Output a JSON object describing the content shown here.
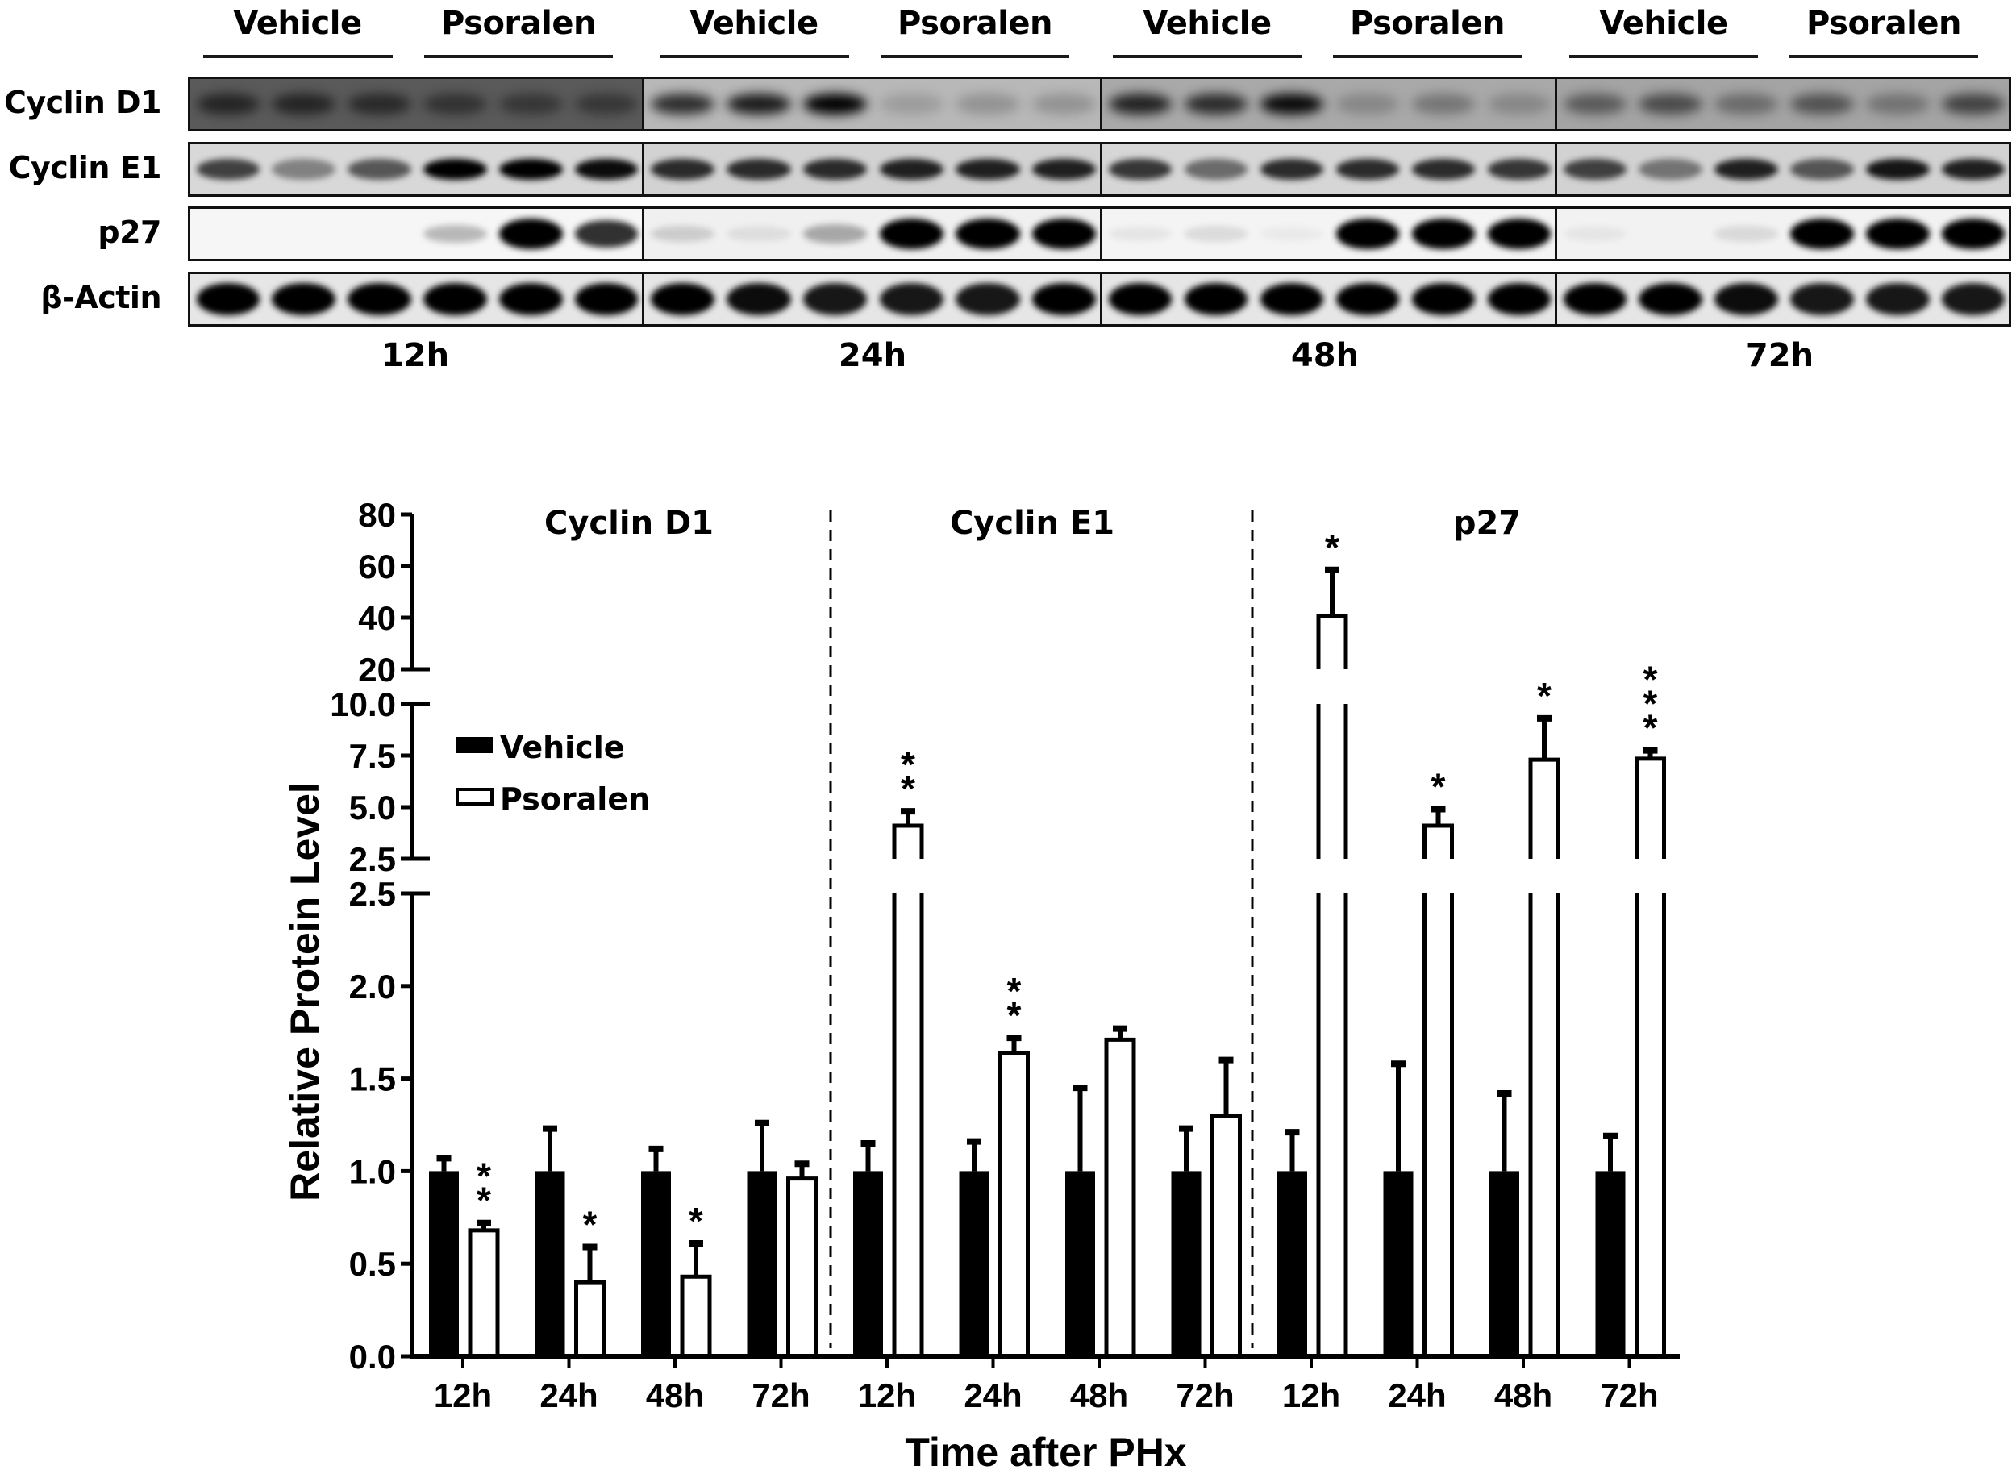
{
  "blot": {
    "group_labels": [
      {
        "label": "Vehicle",
        "x": 369,
        "line": [
          252,
          487
        ]
      },
      {
        "label": "Psoralen",
        "x": 643,
        "line": [
          526,
          760
        ]
      },
      {
        "label": "Vehicle",
        "x": 935,
        "line": [
          818,
          1053
        ]
      },
      {
        "label": "Psoralen",
        "x": 1209,
        "line": [
          1092,
          1326
        ]
      },
      {
        "label": "Vehicle",
        "x": 1497,
        "line": [
          1380,
          1614
        ]
      },
      {
        "label": "Psoralen",
        "x": 1770,
        "line": [
          1653,
          1888
        ]
      },
      {
        "label": "Vehicle",
        "x": 2063,
        "line": [
          1946,
          2180
        ]
      },
      {
        "label": "Psoralen",
        "x": 2336,
        "line": [
          2219,
          2453
        ]
      }
    ],
    "rows": [
      {
        "label": "Cyclin D1",
        "top": 95
      },
      {
        "label": "Cyclin E1",
        "top": 176
      },
      {
        "label": "p27",
        "top": 256
      },
      {
        "label": "β-Actin",
        "top": 337
      }
    ],
    "time_points": [
      {
        "label": "12h",
        "x": 515
      },
      {
        "label": "24h",
        "x": 1082
      },
      {
        "label": "48h",
        "x": 1643
      },
      {
        "label": "72h",
        "x": 2207
      }
    ]
  },
  "chart_data": {
    "type": "bar",
    "title": "",
    "xlabel": "Time after PHx",
    "ylabel": "Relative Protein Level",
    "legend": [
      {
        "name": "Vehicle",
        "fill": "#000000"
      },
      {
        "name": "Psoralen",
        "fill": "#ffffff"
      }
    ],
    "legend_position": "upper-left",
    "grid": false,
    "y_axis_segments": [
      {
        "range": [
          0,
          2.5
        ],
        "ticks": [
          "0.0",
          "0.5",
          "1.0",
          "1.5",
          "2.0",
          "2.5"
        ]
      },
      {
        "range": [
          2.5,
          10
        ],
        "ticks": [
          "2.5",
          "5.0",
          "7.5",
          "10.0"
        ]
      },
      {
        "range": [
          20,
          80
        ],
        "ticks": [
          "20",
          "40",
          "60",
          "80"
        ]
      }
    ],
    "panels": [
      {
        "title": "Cyclin D1",
        "categories": [
          "12h",
          "24h",
          "48h",
          "72h"
        ],
        "series": [
          {
            "name": "Vehicle",
            "values": [
              1.0,
              1.0,
              1.0,
              1.0
            ],
            "error_top": [
              1.07,
              1.23,
              1.12,
              1.26
            ]
          },
          {
            "name": "Psoralen",
            "values": [
              0.68,
              0.4,
              0.43,
              0.96
            ],
            "error_top": [
              0.72,
              0.59,
              0.61,
              1.04
            ]
          }
        ],
        "significance": [
          "**",
          "*",
          "*",
          ""
        ]
      },
      {
        "title": "Cyclin E1",
        "categories": [
          "12h",
          "24h",
          "48h",
          "72h"
        ],
        "series": [
          {
            "name": "Vehicle",
            "values": [
              1.0,
              1.0,
              1.0,
              1.0
            ],
            "error_top": [
              1.15,
              1.16,
              1.45,
              1.23
            ]
          },
          {
            "name": "Psoralen",
            "values": [
              4.1,
              1.64,
              1.71,
              1.3
            ],
            "error_top": [
              4.8,
              1.72,
              1.77,
              1.6
            ]
          }
        ],
        "significance": [
          "**",
          "**",
          "",
          ""
        ]
      },
      {
        "title": "p27",
        "categories": [
          "12h",
          "24h",
          "48h",
          "72h"
        ],
        "series": [
          {
            "name": "Vehicle",
            "values": [
              1.0,
              1.0,
              1.0,
              1.0
            ],
            "error_top": [
              1.21,
              1.58,
              1.42,
              1.19
            ]
          },
          {
            "name": "Psoralen",
            "values": [
              40.5,
              4.1,
              7.3,
              7.35
            ],
            "error_top": [
              58.5,
              4.9,
              9.3,
              7.75
            ]
          }
        ],
        "significance": [
          "*",
          "*",
          "*",
          "***"
        ]
      }
    ]
  }
}
